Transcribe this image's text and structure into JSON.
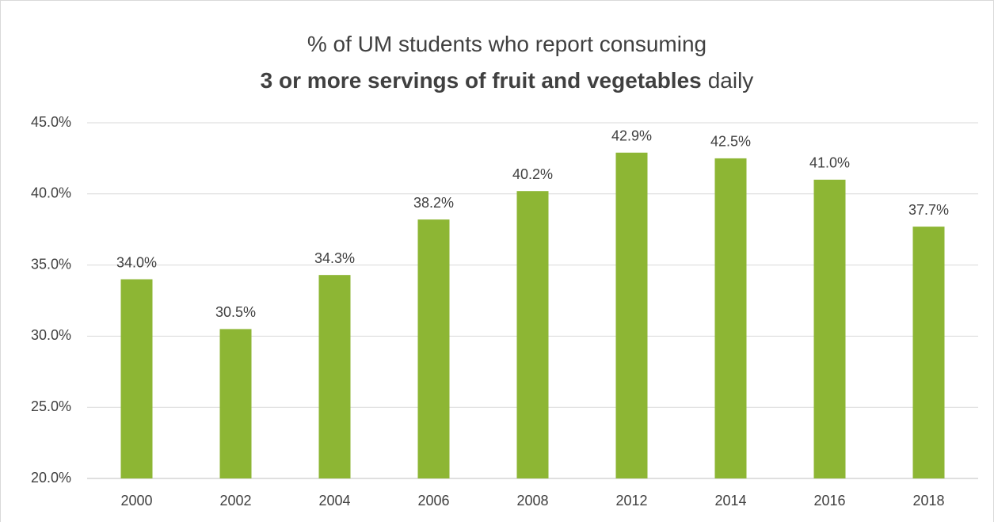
{
  "chart_data": {
    "type": "bar",
    "title": [
      [
        {
          "text": "% of UM students who report consuming",
          "bold": false
        }
      ],
      [
        {
          "text": "3 or more servings of fruit and vegetables",
          "bold": true
        },
        {
          "text": "daily",
          "bold": false
        }
      ]
    ],
    "categories": [
      "2000",
      "2002",
      "2004",
      "2006",
      "2008",
      "2012",
      "2014",
      "2016",
      "2018"
    ],
    "values": [
      34.0,
      30.5,
      34.3,
      38.2,
      40.2,
      42.9,
      42.5,
      41.0,
      37.7
    ],
    "value_labels": [
      "34.0%",
      "30.5%",
      "34.3%",
      "38.2%",
      "40.2%",
      "42.9%",
      "42.5%",
      "41.0%",
      "37.7%"
    ],
    "color": "#8db634",
    "ylim": [
      20,
      45
    ],
    "yticks": [
      {
        "value": 20,
        "label": "20.0%"
      },
      {
        "value": 25,
        "label": "25.0%"
      },
      {
        "value": 30,
        "label": "30.0%"
      },
      {
        "value": 35,
        "label": "35.0%"
      },
      {
        "value": 40,
        "label": "40.0%"
      },
      {
        "value": 45,
        "label": "45.0%"
      }
    ],
    "grid": true
  }
}
